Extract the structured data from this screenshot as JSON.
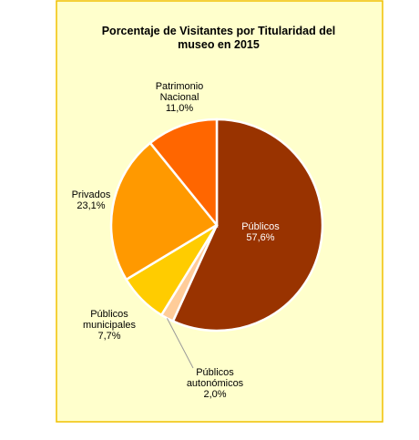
{
  "chart_data": {
    "type": "pie",
    "title": "Porcentaje de Visitantes por Titularidad del museo en 2015",
    "categories": [
      "Públicos",
      "Públicos autonómicos",
      "Públicos municipales",
      "Privados",
      "Patrimonio Nacional"
    ],
    "values": [
      57.6,
      2.0,
      7.7,
      23.1,
      11.0
    ],
    "value_labels": [
      "57,6%",
      "2,0%",
      "7,7%",
      "23,1%",
      "11,0%"
    ],
    "colors": [
      "#993300",
      "#ffcc99",
      "#ffcc00",
      "#ff9900",
      "#ff6600"
    ]
  }
}
